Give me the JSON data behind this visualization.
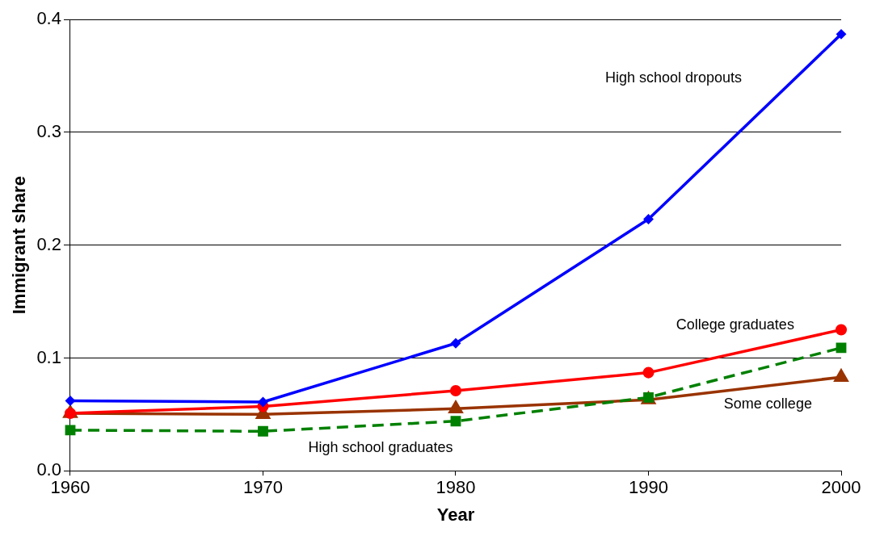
{
  "chart_data": {
    "type": "line",
    "xlabel": "Year",
    "ylabel": "Immigrant share",
    "x": [
      1960,
      1970,
      1980,
      1990,
      2000
    ],
    "xlim": [
      1960,
      2000
    ],
    "xticks": [
      1960,
      1970,
      1980,
      1990,
      2000
    ],
    "ylim": [
      0,
      0.4
    ],
    "yticks": [
      {
        "value": 0,
        "label": "0.0"
      },
      0.1,
      0.2,
      0.3,
      0.4
    ],
    "grid": "y",
    "legend": false,
    "series": [
      {
        "name": "High school dropouts",
        "color": "#0000ff",
        "marker": "diamond",
        "line_style": "solid",
        "values": [
          0.062,
          0.061,
          0.113,
          0.223,
          0.387
        ]
      },
      {
        "name": "College graduates",
        "color": "#ff0000",
        "marker": "circle",
        "line_style": "solid",
        "values": [
          0.051,
          0.057,
          0.071,
          0.087,
          0.125
        ]
      },
      {
        "name": "High school graduates",
        "color": "#008000",
        "marker": "square",
        "line_style": "dashed",
        "values": [
          0.036,
          0.035,
          0.044,
          0.065,
          0.109
        ]
      },
      {
        "name": "Some college",
        "color": "#993300",
        "marker": "triangle",
        "line_style": "solid",
        "values": [
          0.051,
          0.05,
          0.055,
          0.063,
          0.083
        ]
      }
    ]
  }
}
